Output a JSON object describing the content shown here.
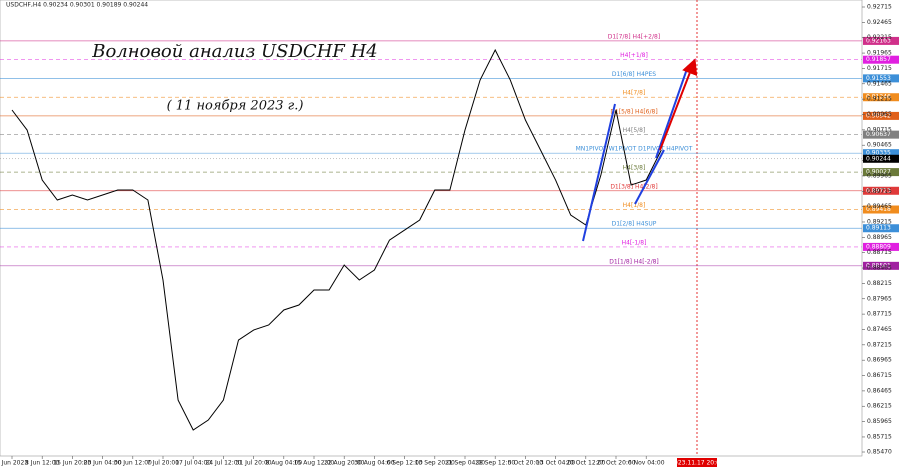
{
  "chart_data": {
    "type": "line",
    "header": "USDCHF,H4  0.90234 0.90301 0.90189 0.90244",
    "title": "Волновой анализ USDCHF H4",
    "subtitle": "( 11 ноября 2023 г.)",
    "time_marker": "2023.11.17 20:00",
    "current_price": 0.90244,
    "categories": [
      "1 Jun 2023",
      null,
      "8 Jun 12:00",
      null,
      "15 Jun 20:00",
      null,
      "23 Jun 04:00",
      null,
      "30 Jun 12:00",
      null,
      "7 Jul 20:00",
      null,
      "17 Jul 04:00",
      null,
      "24 Jul 12:00",
      null,
      "31 Jul 20:00",
      null,
      "8 Aug 04:00",
      null,
      "15 Aug 12:00",
      null,
      "22 Aug 20:00",
      null,
      "30 Aug 04:00",
      null,
      "6 Sep 12:00",
      null,
      "13 Sep 20:00",
      null,
      "21 Sep 04:00",
      null,
      "28 Sep 12:00",
      null,
      "5 Oct 20:00",
      null,
      "13 Oct 04:00",
      null,
      "20 Oct 12:00",
      null,
      "27 Oct 20:00",
      null,
      "6 Nov 04:00",
      null
    ],
    "series": [
      {
        "name": "USDCHF",
        "color": "#000000",
        "values": [
          0.91038,
          0.90712,
          0.89898,
          0.89573,
          0.89654,
          0.89573,
          0.89654,
          0.89736,
          0.89736,
          0.89573,
          0.8827,
          0.86316,
          0.85828,
          0.85991,
          0.86316,
          0.87293,
          0.87456,
          0.87538,
          0.87782,
          0.87863,
          0.88107,
          0.88107,
          0.88514,
          0.8827,
          0.88433,
          0.88921,
          0.89084,
          0.89247,
          0.89736,
          0.89736,
          0.90712,
          0.91526,
          0.92015,
          0.91526,
          0.90875,
          0.90387,
          0.89898,
          0.89328,
          0.89166,
          0.8998,
          0.91038,
          0.89817,
          0.89898,
          0.90387
        ]
      }
    ],
    "levels": [
      {
        "label": "D1[7/8] H4[+2/8]",
        "value": 0.92163,
        "color": "#d0308a",
        "dashed": false
      },
      {
        "label": "H4[+1/8]",
        "value": 0.91857,
        "color": "#e020e0",
        "dashed": true
      },
      {
        "label": "D1[6/8] H4PES",
        "value": 0.91553,
        "color": "#3c8fd8",
        "dashed": false
      },
      {
        "label": "H4[7/8]",
        "value": 0.91246,
        "color": "#f08c1e",
        "dashed": true
      },
      {
        "label": "D1[5/8] H4[6/8]",
        "value": 0.90942,
        "color": "#e0601a",
        "dashed": false
      },
      {
        "label": "H4[5/8]",
        "value": 0.90637,
        "color": "#808080",
        "dashed": true
      },
      {
        "label": "MN1PIVOT W1PIVOT D1PIVOT H4PIVOT",
        "value": 0.90335,
        "color": "#3c8fd8",
        "dashed": false
      },
      {
        "label": "H4[3/8]",
        "value": 0.90027,
        "color": "#6b7a3a",
        "dashed": true
      },
      {
        "label": "D1[3/8] H4[2/8]",
        "value": 0.89723,
        "color": "#e03a3a",
        "dashed": false
      },
      {
        "label": "H4[1/8]",
        "value": 0.89418,
        "color": "#f08c1e",
        "dashed": true
      },
      {
        "label": "D1[2/8] H4SUP",
        "value": 0.89113,
        "color": "#3c8fd8",
        "dashed": false
      },
      {
        "label": "H4[-1/8]",
        "value": 0.88809,
        "color": "#e020e0",
        "dashed": true
      },
      {
        "label": "D1[1/8] H4[-2/8]",
        "value": 0.88501,
        "color": "#a020a0",
        "dashed": false
      }
    ],
    "ylim": [
      0.85405,
      0.92829
    ],
    "yticks": [
      0.92715,
      0.92465,
      0.92215,
      0.91965,
      0.91715,
      0.91465,
      0.91215,
      0.90965,
      0.90715,
      0.90465,
      0.90215,
      0.89965,
      0.89715,
      0.89465,
      0.89215,
      0.88965,
      0.88715,
      0.88465,
      0.88215,
      0.87965,
      0.87715,
      0.87465,
      0.87215,
      0.86965,
      0.86715,
      0.86465,
      0.86215,
      0.85965,
      0.85715,
      {
        "value": 0.8547,
        "label": "0.85470"
      }
    ],
    "grid": false
  }
}
